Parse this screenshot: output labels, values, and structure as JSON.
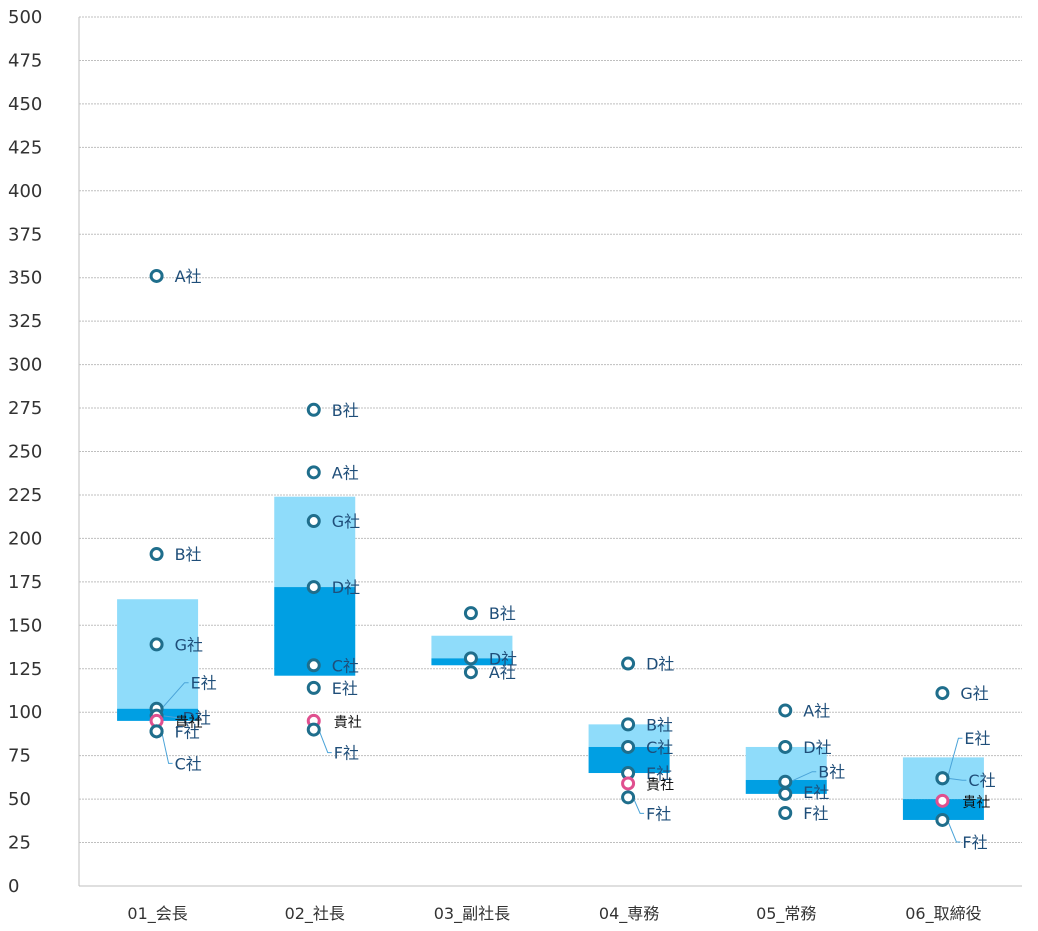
{
  "chart_data": {
    "type": "box-range-scatter",
    "title": "",
    "xlabel": "",
    "ylabel": "",
    "ylim": [
      0,
      500
    ],
    "yticks": [
      0,
      25,
      50,
      75,
      100,
      125,
      150,
      175,
      200,
      225,
      250,
      275,
      300,
      325,
      350,
      375,
      400,
      425,
      450,
      475,
      500
    ],
    "grid": true,
    "categories": [
      "01_会長",
      "02_社長",
      "03_副社長",
      "04_専務",
      "05_常務",
      "06_取締役"
    ],
    "ranges": [
      {
        "low": 95,
        "mid": 102,
        "high": 165
      },
      {
        "low": 121,
        "mid": 172,
        "high": 224
      },
      {
        "low": 127,
        "mid": 131,
        "high": 144
      },
      {
        "low": 65,
        "mid": 80,
        "high": 93
      },
      {
        "low": 53,
        "mid": 61,
        "high": 80
      },
      {
        "low": 38,
        "mid": 50,
        "high": 74
      }
    ],
    "colors": {
      "range_upper": "#8fdcfa",
      "range_lower": "#009fe3",
      "marker": "#1f6e8c",
      "marker_own": "#e0508f",
      "grid": "#bfbfbf",
      "axis": "#bfbfbf"
    },
    "points": [
      [
        {
          "name": "A社",
          "value": 351
        },
        {
          "name": "B社",
          "value": 191
        },
        {
          "name": "G社",
          "value": 139
        },
        {
          "name": "E社",
          "value": 102
        },
        {
          "name": "D社",
          "value": 98
        },
        {
          "name": "貴社",
          "value": 95,
          "own": true
        },
        {
          "name": "F社",
          "value": 89
        },
        {
          "name": "C社",
          "value": 89
        }
      ],
      [
        {
          "name": "B社",
          "value": 274
        },
        {
          "name": "A社",
          "value": 238
        },
        {
          "name": "G社",
          "value": 210
        },
        {
          "name": "D社",
          "value": 172
        },
        {
          "name": "C社",
          "value": 127
        },
        {
          "name": "E社",
          "value": 114
        },
        {
          "name": "貴社",
          "value": 95,
          "own": true
        },
        {
          "name": "F社",
          "value": 90
        }
      ],
      [
        {
          "name": "B社",
          "value": 157
        },
        {
          "name": "D社",
          "value": 131
        },
        {
          "name": "A社",
          "value": 123
        }
      ],
      [
        {
          "name": "D社",
          "value": 128
        },
        {
          "name": "B社",
          "value": 93
        },
        {
          "name": "C社",
          "value": 80
        },
        {
          "name": "E社",
          "value": 65
        },
        {
          "name": "貴社",
          "value": 59,
          "own": true
        },
        {
          "name": "F社",
          "value": 51
        }
      ],
      [
        {
          "name": "A社",
          "value": 101
        },
        {
          "name": "D社",
          "value": 80
        },
        {
          "name": "B社",
          "value": 60
        },
        {
          "name": "E社",
          "value": 53
        },
        {
          "name": "F社",
          "value": 42
        }
      ],
      [
        {
          "name": "G社",
          "value": 111
        },
        {
          "name": "E社",
          "value": 62
        },
        {
          "name": "C社",
          "value": 62
        },
        {
          "name": "貴社",
          "value": 49,
          "own": true
        },
        {
          "name": "F社",
          "value": 38
        }
      ]
    ]
  }
}
